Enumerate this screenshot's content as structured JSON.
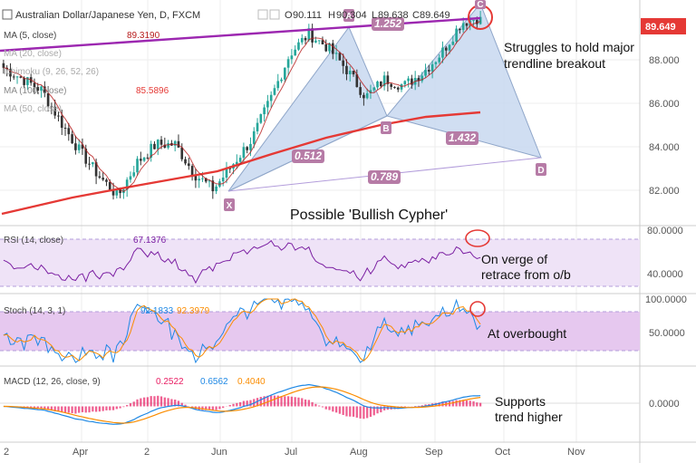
{
  "header": {
    "title": "Australian Dollar/Japanese Yen, D, FXCM",
    "ohlc": [
      {
        "key": "O",
        "value": "90.111"
      },
      {
        "key": "H",
        "value": "90.304"
      },
      {
        "key": "L",
        "value": "89.638"
      },
      {
        "key": "C",
        "value": "89.649"
      }
    ],
    "last_price": "89.649"
  },
  "studies": [
    {
      "label": "MA (5, close)",
      "value": "89.3190",
      "color": "#b71c1c"
    },
    {
      "label": "MA (20, close)",
      "value": "",
      "color": "#999999"
    },
    {
      "label": "Ichimoku (9, 26, 52, 26)",
      "value": "",
      "color": "#999999"
    },
    {
      "label": "MA (100, close)",
      "value": "85.5896",
      "color": "#e53935"
    },
    {
      "label": "MA (50, close)",
      "value": "",
      "color": "#999999"
    }
  ],
  "annotations": {
    "pattern": "Possible 'Bullish Cypher'",
    "trendline": [
      "Struggles to hold major",
      "trendline breakout"
    ],
    "rsi": [
      "On verge of",
      "retrace from o/b"
    ],
    "stoch": [
      "At overbought"
    ],
    "macd": [
      "Supports",
      "trend higher"
    ]
  },
  "chart_data": [
    {
      "type": "candlestick",
      "pane": "price",
      "x_ticks": [
        "2",
        "Apr",
        "2",
        "Jun",
        "Jul",
        "Aug",
        "Sep",
        "Oct",
        "Nov"
      ],
      "y_ticks": [
        "82.000",
        "84.000",
        "86.000",
        "88.000"
      ],
      "ylim": [
        80.4,
        90.4
      ],
      "approx_close_path": [
        {
          "t": "Mar 1",
          "v": 87.4
        },
        {
          "t": "Mar 15",
          "v": 86.9
        },
        {
          "t": "Mar 20",
          "v": 86.4
        },
        {
          "t": "Mar 28",
          "v": 85.0
        },
        {
          "t": "Apr 7",
          "v": 83.7
        },
        {
          "t": "Apr 15",
          "v": 82.6
        },
        {
          "t": "Apr 25",
          "v": 81.7
        },
        {
          "t": "May 3",
          "v": 83.2
        },
        {
          "t": "May 10",
          "v": 84.0
        },
        {
          "t": "May 20",
          "v": 84.0
        },
        {
          "t": "May 27",
          "v": 82.7
        },
        {
          "t": "Jun 3",
          "v": 82.0
        },
        {
          "t": "Jun 10",
          "v": 83.1
        },
        {
          "t": "Jun 20",
          "v": 84.2
        },
        {
          "t": "Jul 1",
          "v": 86.0
        },
        {
          "t": "Jul 12",
          "v": 88.0
        },
        {
          "t": "Jul 22",
          "v": 88.9
        },
        {
          "t": "Jul 29",
          "v": 88.3
        },
        {
          "t": "Aug 5",
          "v": 87.3
        },
        {
          "t": "Aug 12",
          "v": 86.1
        },
        {
          "t": "Aug 19",
          "v": 86.9
        },
        {
          "t": "Aug 26",
          "v": 86.6
        },
        {
          "t": "Sep 5",
          "v": 87.2
        },
        {
          "t": "Sep 12",
          "v": 88.1
        },
        {
          "t": "Sep 18",
          "v": 89.4
        },
        {
          "t": "Sep 21",
          "v": 89.649
        }
      ],
      "pattern": {
        "name": "Possible 'Bullish Cypher'",
        "points": [
          {
            "label": "X",
            "t": "Jun 3",
            "v": 82.0
          },
          {
            "label": "A",
            "t": "Jul 26",
            "v": 89.1
          },
          {
            "label": "B",
            "t": "Aug 20",
            "v": 85.8
          },
          {
            "label": "C",
            "t": "Sep 21",
            "v": 90.3
          },
          {
            "label": "D",
            "t": "Oct 12",
            "v": 83.5
          }
        ],
        "ratios": [
          {
            "label": "0.512",
            "between": "X-B"
          },
          {
            "label": "1.252",
            "between": "A-C"
          },
          {
            "label": "1.432",
            "between": "B-D"
          },
          {
            "label": "0.789",
            "between": "X-D"
          }
        ]
      },
      "trendline_color": "#9c27b0",
      "ma_color": "#e53935",
      "pattern_fill": "#c8d8f0"
    },
    {
      "type": "line",
      "pane": "rsi",
      "name": "RSI (14, close)",
      "last_value": "67.1376",
      "y_ticks": [
        "40.0000",
        "80.0000"
      ],
      "ylim": [
        25,
        85
      ],
      "bands": [
        30,
        70
      ],
      "color": "#7b1fa2"
    },
    {
      "type": "line",
      "pane": "stoch",
      "name": "Stoch (14, 3, 1)",
      "last_values": [
        "92.1833",
        "92.3979"
      ],
      "y_ticks": [
        "50.0000",
        "100.0000"
      ],
      "ylim": [
        0,
        105
      ],
      "bands": [
        20,
        80
      ],
      "colors": [
        "#1e88e5",
        "#fb8c00"
      ]
    },
    {
      "type": "histogram+line",
      "pane": "macd",
      "name": "MACD (12, 26, close, 9)",
      "last_values": [
        "0.2522",
        "0.6562",
        "0.4040"
      ],
      "y_ticks": [
        "0.0000"
      ],
      "colors": [
        "#e91e63",
        "#1e88e5",
        "#fb8c00"
      ]
    }
  ]
}
